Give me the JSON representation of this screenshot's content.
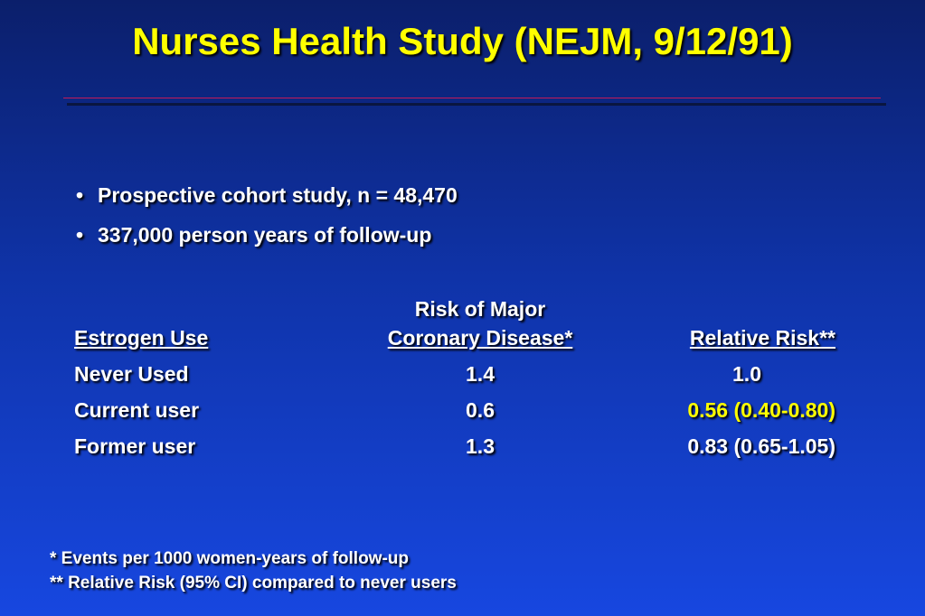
{
  "slide": {
    "title": "Nurses Health Study (NEJM, 9/12/91)",
    "bullets": [
      "Prospective cohort study, n = 48,470",
      "337,000 person years of follow-up"
    ],
    "bullet_glyph": "•",
    "colors": {
      "background_top": "#0b1f6b",
      "background_bottom": "#1747e0",
      "title": "#ffff00",
      "text": "#ffffff",
      "highlight": "#ffff00",
      "rule": "#c41a5a"
    }
  },
  "table": {
    "header": {
      "col1": "Estrogen Use",
      "col2_line1": "Risk of Major",
      "col2_line2": "Coronary Disease*",
      "col3": "Relative Risk**"
    },
    "rows": [
      {
        "estrogen_use": "Never Used",
        "risk": "1.4",
        "relative_risk": "1.0",
        "highlighted": false
      },
      {
        "estrogen_use": "Current user",
        "risk": "0.6",
        "relative_risk": "0.56 (0.40-0.80)",
        "highlighted": true
      },
      {
        "estrogen_use": "Former user",
        "risk": "1.3",
        "relative_risk": "0.83 (0.65-1.05)",
        "highlighted": false
      }
    ]
  },
  "footnotes": [
    "* Events per 1000 women-years of follow-up",
    "**  Relative Risk (95% CI) compared to never users"
  ]
}
